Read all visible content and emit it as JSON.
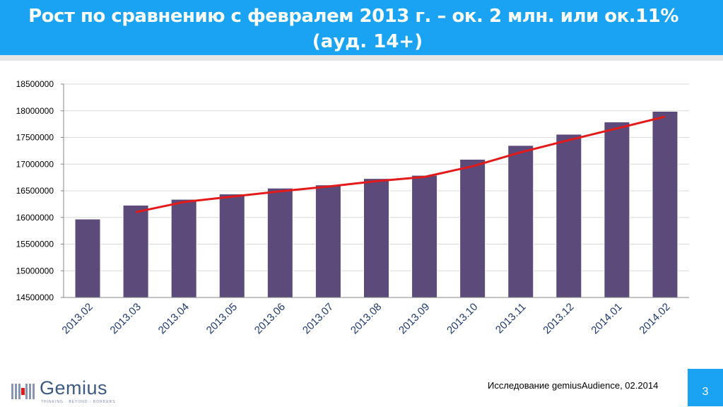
{
  "slide": {
    "title_line1": "Рост по сравнению с февралем 2013 г. – ок. 2 млн. или ок.11%",
    "title_line2": "(ауд. 14+)",
    "footer_source": "Исследование gemiusAudience, 02.2014",
    "page_number": "3",
    "logo_text": "Gemius",
    "logo_tagline": "THINKING · BEYOND · BORDERS"
  },
  "colors": {
    "header_bg": "#1aa3f2",
    "bar": "#5c4a7a",
    "trend": "#e31a1a",
    "tick_label": "#1f3a6e"
  },
  "chart_data": {
    "type": "bar",
    "categories": [
      "2013.02",
      "2013.03",
      "2013.04",
      "2013.05",
      "2013.06",
      "2013.07",
      "2013.08",
      "2013.09",
      "2013.10",
      "2013.11",
      "2013.12",
      "2014.01",
      "2014.02"
    ],
    "values": [
      15970000,
      16230000,
      16340000,
      16440000,
      16550000,
      16610000,
      16730000,
      16790000,
      17090000,
      17350000,
      17560000,
      17790000,
      17990000
    ],
    "trend_line": {
      "type": "line",
      "start_index": 1,
      "values": [
        16100000,
        16290000,
        16390000,
        16490000,
        16580000,
        16680000,
        16760000,
        16960000,
        17220000,
        17450000,
        17670000,
        17890000
      ]
    },
    "ylim": [
      14500000,
      18500000
    ],
    "yticks": [
      "14500000",
      "15000000",
      "15500000",
      "16000000",
      "16500000",
      "17000000",
      "17500000",
      "18000000",
      "18500000"
    ],
    "grid": true,
    "legend": "none"
  }
}
